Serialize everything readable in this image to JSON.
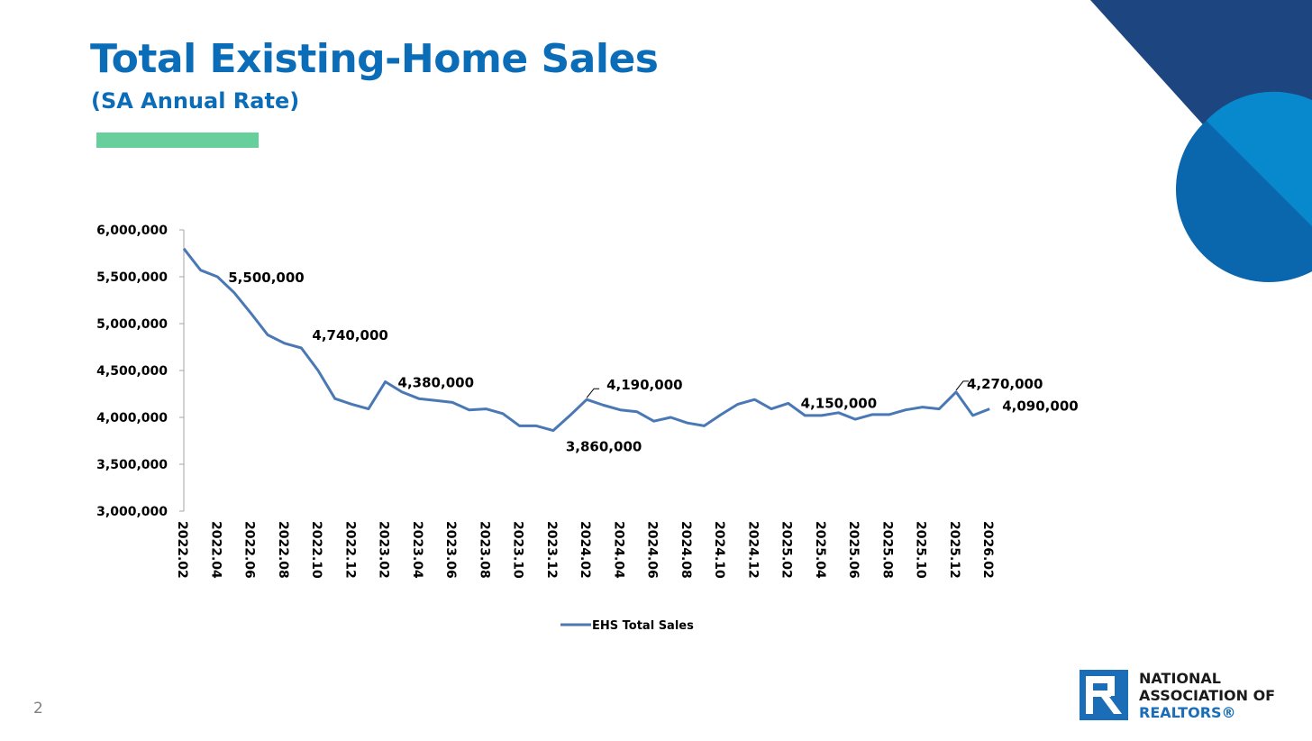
{
  "slide": {
    "title": "Total Existing-Home Sales",
    "subtitle": "(SA Annual Rate)",
    "page_number": "2"
  },
  "logo": {
    "line1": "NATIONAL",
    "line2": "ASSOCIATION OF",
    "line3": "REALTORS®"
  },
  "colors": {
    "title": "#0b6cb8",
    "accent_bar": "#66cf9c",
    "series_line": "#4a78b5",
    "deco_navy": "#1d4580",
    "deco_blue": "#0a66ad",
    "deco_light": "#0889cd",
    "logo_blue": "#1b6db8"
  },
  "chart_data": {
    "type": "line",
    "y_ticks": [
      "6,000,000",
      "5,500,000",
      "5,000,000",
      "4,500,000",
      "4,000,000",
      "3,500,000",
      "3,000,000"
    ],
    "ylim": [
      3000000,
      6000000
    ],
    "x_tick_labels": [
      "2022.02",
      "2022.04",
      "2022.06",
      "2022.08",
      "2022.10",
      "2022.12",
      "2023.02",
      "2023.04",
      "2023.06",
      "2023.08",
      "2023.10",
      "2023.12",
      "2024.02",
      "2024.04",
      "2024.06",
      "2024.08",
      "2024.10",
      "2024.12",
      "2025.02",
      "2025.04",
      "2025.06",
      "2025.08",
      "2025.10",
      "2025.12",
      "2026.02"
    ],
    "grid": false,
    "legend_position": "bottom",
    "series": [
      {
        "name": "EHS Total Sales",
        "x": [
          "2022.02",
          "2022.03",
          "2022.04",
          "2022.05",
          "2022.06",
          "2022.07",
          "2022.08",
          "2022.09",
          "2022.10",
          "2022.11",
          "2022.12",
          "2023.01",
          "2023.02",
          "2023.03",
          "2023.04",
          "2023.05",
          "2023.06",
          "2023.07",
          "2023.08",
          "2023.09",
          "2023.10",
          "2023.11",
          "2023.12",
          "2024.01",
          "2024.02",
          "2024.03",
          "2024.04",
          "2024.05",
          "2024.06",
          "2024.07",
          "2024.08",
          "2024.09",
          "2024.10",
          "2024.11",
          "2024.12",
          "2025.01",
          "2025.02",
          "2025.03",
          "2025.04",
          "2025.05",
          "2025.06",
          "2025.07",
          "2025.08",
          "2025.09",
          "2025.10",
          "2025.11",
          "2025.12",
          "2026.01",
          "2026.02"
        ],
        "values": [
          5800000,
          5570000,
          5500000,
          5330000,
          5110000,
          4880000,
          4790000,
          4740000,
          4500000,
          4200000,
          4140000,
          4090000,
          4380000,
          4270000,
          4200000,
          4180000,
          4160000,
          4080000,
          4090000,
          4040000,
          3910000,
          3910000,
          3860000,
          4020000,
          4190000,
          4130000,
          4080000,
          4060000,
          3960000,
          4000000,
          3940000,
          3910000,
          4030000,
          4140000,
          4190000,
          4090000,
          4150000,
          4020000,
          4020000,
          4050000,
          3980000,
          4030000,
          4030000,
          4080000,
          4110000,
          4090000,
          4270000,
          4020000,
          4090000
        ]
      }
    ],
    "annotations": [
      {
        "x": "2022.04",
        "text": "5,500,000",
        "value": 5500000
      },
      {
        "x": "2022.09",
        "text": "4,740,000",
        "value": 4740000
      },
      {
        "x": "2023.02",
        "text": "4,380,000",
        "value": 4380000
      },
      {
        "x": "2023.12",
        "text": "3,860,000",
        "value": 3860000
      },
      {
        "x": "2024.02",
        "text": "4,190,000",
        "value": 4190000
      },
      {
        "x": "2025.02",
        "text": "4,150,000",
        "value": 4150000
      },
      {
        "x": "2025.12",
        "text": "4,270,000",
        "value": 4270000
      },
      {
        "x": "2026.02",
        "text": "4,090,000",
        "value": 4090000
      }
    ]
  }
}
